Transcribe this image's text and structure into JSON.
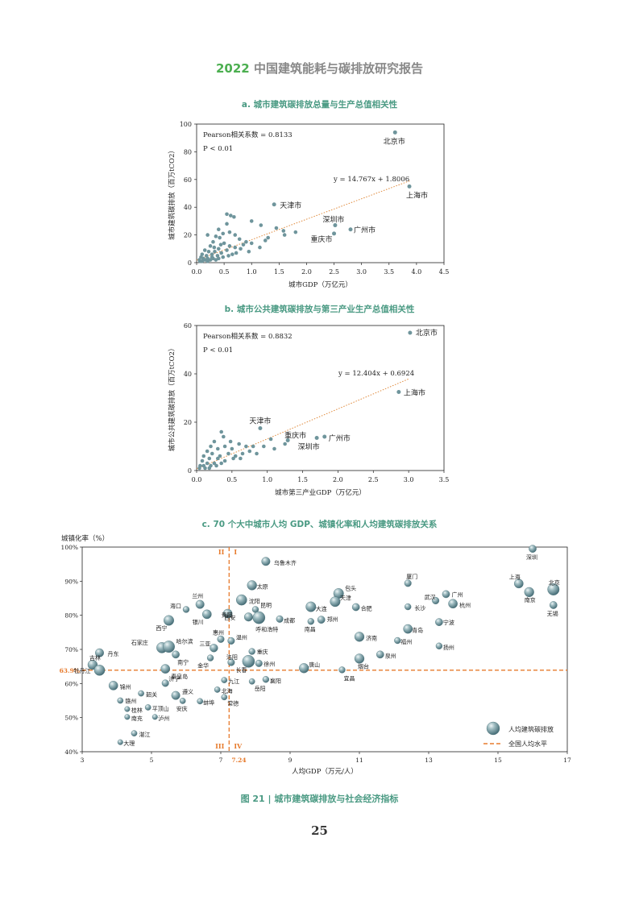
{
  "header": {
    "year": "2022",
    "title": "中国建筑能耗与碳排放研究报告"
  },
  "colors": {
    "point": "#6f959c",
    "trend": "#e08a3c",
    "ref_line": "#e77b2d",
    "bubble": "#6a9098"
  },
  "chart_data": [
    {
      "id": "a",
      "type": "scatter",
      "title": "a. 城市建筑碳排放总量与生产总值相关性",
      "xlabel": "城市GDP（万亿元）",
      "ylabel": "城市建筑碳排放（百万tCO2）",
      "xlim": [
        0,
        4.5
      ],
      "ylim": [
        0,
        100
      ],
      "xticks": [
        "0.0",
        "0.5",
        "1.0",
        "1.5",
        "2.0",
        "2.5",
        "3.0",
        "3.5",
        "4.0",
        "4.5"
      ],
      "yticks": [
        "0",
        "20",
        "40",
        "60",
        "80",
        "100"
      ],
      "stats": {
        "pearson": "Pearson相关系数 = 0.8133",
        "p": "P < 0.01"
      },
      "equation": "y = 14.767x + 1.8006",
      "trend": {
        "slope": 14.767,
        "intercept": 1.8006,
        "x_range": [
          0,
          3.88
        ]
      },
      "labeled_points": [
        {
          "name": "北京市",
          "x": 3.61,
          "y": 94
        },
        {
          "name": "上海市",
          "x": 3.87,
          "y": 55
        },
        {
          "name": "天津市",
          "x": 1.41,
          "y": 42
        },
        {
          "name": "深圳市",
          "x": 2.52,
          "y": 27
        },
        {
          "name": "重庆市",
          "x": 2.5,
          "y": 21
        },
        {
          "name": "广州市",
          "x": 2.8,
          "y": 24
        }
      ],
      "points": [
        [
          0.55,
          35
        ],
        [
          0.62,
          34
        ],
        [
          0.68,
          33
        ],
        [
          1.0,
          30
        ],
        [
          0.55,
          28
        ],
        [
          1.17,
          27
        ],
        [
          1.45,
          25
        ],
        [
          0.4,
          24
        ],
        [
          0.6,
          22
        ],
        [
          1.58,
          23
        ],
        [
          0.48,
          21
        ],
        [
          0.7,
          20
        ],
        [
          1.6,
          20
        ],
        [
          1.8,
          22
        ],
        [
          0.2,
          20
        ],
        [
          0.35,
          19
        ],
        [
          0.42,
          18
        ],
        [
          0.78,
          17
        ],
        [
          0.9,
          15
        ],
        [
          1.25,
          16
        ],
        [
          1.0,
          14
        ],
        [
          0.3,
          15
        ],
        [
          0.5,
          14
        ],
        [
          0.6,
          12
        ],
        [
          0.25,
          12
        ],
        [
          0.4,
          10
        ],
        [
          0.8,
          10
        ],
        [
          0.15,
          9
        ],
        [
          0.22,
          8
        ],
        [
          0.33,
          8
        ],
        [
          0.45,
          7
        ],
        [
          0.55,
          9
        ],
        [
          0.65,
          6
        ],
        [
          0.7,
          11
        ],
        [
          0.1,
          6
        ],
        [
          0.18,
          5
        ],
        [
          0.28,
          6
        ],
        [
          0.38,
          5
        ],
        [
          0.48,
          4
        ],
        [
          0.12,
          3
        ],
        [
          0.2,
          3
        ],
        [
          0.3,
          3
        ],
        [
          0.05,
          2
        ],
        [
          0.08,
          4
        ],
        [
          0.15,
          2
        ],
        [
          0.25,
          2
        ],
        [
          0.35,
          2
        ],
        [
          0.06,
          1
        ],
        [
          0.1,
          1
        ],
        [
          0.2,
          1
        ],
        [
          0.28,
          4
        ],
        [
          0.4,
          3
        ],
        [
          0.58,
          5
        ],
        [
          0.72,
          7
        ],
        [
          0.95,
          8
        ],
        [
          1.15,
          11
        ],
        [
          0.85,
          13
        ],
        [
          1.3,
          18
        ],
        [
          0.32,
          11
        ],
        [
          0.44,
          13
        ]
      ]
    },
    {
      "id": "b",
      "type": "scatter",
      "title": "b. 城市公共建筑碳排放与第三产业生产总值相关性",
      "xlabel": "城市第三产业GDP（万亿元）",
      "ylabel": "城市公共建筑碳排放（百万tCO2）",
      "xlim": [
        0,
        3.5
      ],
      "ylim": [
        0,
        60
      ],
      "xticks": [
        "0.0",
        "0.5",
        "1.0",
        "1.5",
        "2.0",
        "2.5",
        "3.0",
        "3.5"
      ],
      "yticks": [
        "0",
        "20",
        "40",
        "60"
      ],
      "stats": {
        "pearson": "Pearson相关系数 = 0.8832",
        "p": "P < 0.01"
      },
      "equation": "y = 12.404x + 0.6924",
      "trend": {
        "slope": 12.404,
        "intercept": 0.6924,
        "x_range": [
          0,
          3.0
        ]
      },
      "labeled_points": [
        {
          "name": "北京市",
          "x": 3.02,
          "y": 57
        },
        {
          "name": "上海市",
          "x": 2.86,
          "y": 32.5
        },
        {
          "name": "天津市",
          "x": 0.9,
          "y": 17.5
        },
        {
          "name": "广州市",
          "x": 1.81,
          "y": 14
        },
        {
          "name": "重庆市",
          "x": 1.29,
          "y": 12.5
        },
        {
          "name": "深圳市",
          "x": 1.7,
          "y": 13.5
        }
      ],
      "points": [
        [
          0.35,
          16
        ],
        [
          0.25,
          12
        ],
        [
          0.2,
          10
        ],
        [
          0.4,
          10
        ],
        [
          0.6,
          11
        ],
        [
          0.7,
          10
        ],
        [
          0.5,
          9
        ],
        [
          0.3,
          9
        ],
        [
          0.15,
          8
        ],
        [
          0.22,
          7
        ],
        [
          0.45,
          7
        ],
        [
          0.55,
          6
        ],
        [
          0.1,
          6
        ],
        [
          0.18,
          5
        ],
        [
          0.3,
          5
        ],
        [
          0.4,
          4
        ],
        [
          0.62,
          5
        ],
        [
          0.08,
          4
        ],
        [
          0.15,
          3
        ],
        [
          0.25,
          3
        ],
        [
          0.35,
          3
        ],
        [
          0.05,
          2
        ],
        [
          0.1,
          2
        ],
        [
          0.2,
          2
        ],
        [
          0.28,
          2
        ],
        [
          0.04,
          1
        ],
        [
          0.12,
          1
        ],
        [
          0.18,
          1
        ],
        [
          0.8,
          10
        ],
        [
          0.95,
          10
        ],
        [
          1.1,
          9
        ],
        [
          1.25,
          11
        ],
        [
          0.75,
          8
        ],
        [
          0.85,
          7
        ],
        [
          0.65,
          7
        ],
        [
          0.48,
          12
        ],
        [
          0.38,
          14
        ],
        [
          1.05,
          13
        ],
        [
          0.52,
          5
        ],
        [
          0.33,
          6
        ]
      ]
    },
    {
      "id": "c",
      "type": "scatter",
      "title": "c. 70 个大中城市人均 GDP、城镇化率和人均建筑碳排放关系",
      "xlabel": "人均GDP（万元/人）",
      "ylabel": "城镇化率（%）",
      "xlim": [
        3,
        17
      ],
      "ylim": [
        40,
        100
      ],
      "xticks": [
        "3",
        "5",
        "7",
        "9",
        "11",
        "13",
        "15",
        "17"
      ],
      "yticks": [
        "40%",
        "50%",
        "60%",
        "70%",
        "80%",
        "90%",
        "100%"
      ],
      "ref_x": 7.24,
      "ref_x_label": "7.24",
      "ref_y": 63.9,
      "ref_y_label": "63.9%",
      "quadrants": [
        "II",
        "I",
        "III",
        "IV"
      ],
      "legend": {
        "bubble": "人均建筑碳排放",
        "line": "全国人均水平"
      },
      "cities": [
        {
          "name": "深圳",
          "x": 16.0,
          "y": 99.5,
          "s": 1.4
        },
        {
          "name": "乌鲁木齐",
          "x": 8.3,
          "y": 95.8,
          "s": 1.6
        },
        {
          "name": "上海",
          "x": 15.6,
          "y": 89.3,
          "s": 1.7
        },
        {
          "name": "北京",
          "x": 16.6,
          "y": 87.6,
          "s": 2.2
        },
        {
          "name": "南京",
          "x": 15.9,
          "y": 86.8,
          "s": 1.8
        },
        {
          "name": "无锡",
          "x": 16.6,
          "y": 83.0,
          "s": 1.4
        },
        {
          "name": "太原",
          "x": 7.9,
          "y": 88.8,
          "s": 1.8
        },
        {
          "name": "厦门",
          "x": 12.4,
          "y": 89.4,
          "s": 1.3
        },
        {
          "name": "包头",
          "x": 10.4,
          "y": 86.4,
          "s": 1.9
        },
        {
          "name": "武汉",
          "x": 13.2,
          "y": 84.3,
          "s": 1.3
        },
        {
          "name": "广州",
          "x": 13.5,
          "y": 86.2,
          "s": 1.4
        },
        {
          "name": "杭州",
          "x": 13.7,
          "y": 83.4,
          "s": 1.7
        },
        {
          "name": "长沙",
          "x": 12.4,
          "y": 82.5,
          "s": 1.2
        },
        {
          "name": "沈阳",
          "x": 7.6,
          "y": 84.5,
          "s": 2.0
        },
        {
          "name": "大连",
          "x": 9.6,
          "y": 82.5,
          "s": 1.9
        },
        {
          "name": "天津",
          "x": 10.3,
          "y": 84.0,
          "s": 1.9
        },
        {
          "name": "合肥",
          "x": 10.9,
          "y": 82.4,
          "s": 1.4
        },
        {
          "name": "兰州",
          "x": 6.4,
          "y": 83.2,
          "s": 1.6
        },
        {
          "name": "海口",
          "x": 6.0,
          "y": 81.7,
          "s": 1.2
        },
        {
          "name": "银川",
          "x": 6.6,
          "y": 80.3,
          "s": 1.7
        },
        {
          "name": "昆明",
          "x": 8.0,
          "y": 81.7,
          "s": 1.2
        },
        {
          "name": "贵阳",
          "x": 7.2,
          "y": 80.5,
          "s": 1.7
        },
        {
          "name": "呼和浩特",
          "x": 8.1,
          "y": 79.3,
          "s": 2.3
        },
        {
          "name": "西安",
          "x": 7.8,
          "y": 79.5,
          "s": 1.6
        },
        {
          "name": "成都",
          "x": 8.7,
          "y": 78.9,
          "s": 1.3
        },
        {
          "name": "郑州",
          "x": 9.9,
          "y": 78.7,
          "s": 1.4
        },
        {
          "name": "南昌",
          "x": 9.6,
          "y": 78.2,
          "s": 1.2
        },
        {
          "name": "西宁",
          "x": 5.5,
          "y": 78.5,
          "s": 1.9
        },
        {
          "name": "宁波",
          "x": 13.3,
          "y": 78.0,
          "s": 1.4
        },
        {
          "name": "青岛",
          "x": 12.4,
          "y": 76.0,
          "s": 1.7
        },
        {
          "name": "济南",
          "x": 11.0,
          "y": 73.7,
          "s": 1.8
        },
        {
          "name": "福州",
          "x": 12.1,
          "y": 72.6,
          "s": 1.2
        },
        {
          "name": "扬州",
          "x": 13.3,
          "y": 71.0,
          "s": 1.2
        },
        {
          "name": "惠州",
          "x": 7.0,
          "y": 73.0,
          "s": 1.3
        },
        {
          "name": "温州",
          "x": 7.3,
          "y": 72.5,
          "s": 1.3
        },
        {
          "name": "石家庄",
          "x": 5.3,
          "y": 70.5,
          "s": 2.0
        },
        {
          "name": "哈尔滨",
          "x": 5.5,
          "y": 70.8,
          "s": 2.2
        },
        {
          "name": "三亚",
          "x": 6.8,
          "y": 70.4,
          "s": 1.5
        },
        {
          "name": "重庆",
          "x": 7.9,
          "y": 69.4,
          "s": 1.2
        },
        {
          "name": "南宁",
          "x": 5.7,
          "y": 68.5,
          "s": 1.4
        },
        {
          "name": "泉州",
          "x": 11.6,
          "y": 68.5,
          "s": 1.4
        },
        {
          "name": "金华",
          "x": 6.7,
          "y": 67.5,
          "s": 1.2
        },
        {
          "name": "烟台",
          "x": 11.0,
          "y": 67.3,
          "s": 1.8
        },
        {
          "name": "丹东",
          "x": 3.5,
          "y": 69.0,
          "s": 1.6
        },
        {
          "name": "洛阳",
          "x": 7.3,
          "y": 66.2,
          "s": 1.3
        },
        {
          "name": "长春",
          "x": 7.8,
          "y": 66.5,
          "s": 2.3
        },
        {
          "name": "徐州",
          "x": 8.1,
          "y": 65.9,
          "s": 1.3
        },
        {
          "name": "唐山",
          "x": 9.4,
          "y": 64.5,
          "s": 1.8
        },
        {
          "name": "吉林",
          "x": 3.3,
          "y": 65.5,
          "s": 1.8
        },
        {
          "name": "宜昌",
          "x": 10.5,
          "y": 64.0,
          "s": 1.2
        },
        {
          "name": "秦皇岛",
          "x": 5.4,
          "y": 64.3,
          "s": 1.7
        },
        {
          "name": "牡丹江",
          "x": 3.5,
          "y": 63.9,
          "s": 2.0
        },
        {
          "name": "九江",
          "x": 7.1,
          "y": 61.0,
          "s": 1.1
        },
        {
          "name": "襄阳",
          "x": 8.3,
          "y": 61.2,
          "s": 1.2
        },
        {
          "name": "岳阳",
          "x": 7.9,
          "y": 60.6,
          "s": 1.1
        },
        {
          "name": "济宁",
          "x": 5.4,
          "y": 60.1,
          "s": 1.3
        },
        {
          "name": "锦州",
          "x": 3.9,
          "y": 59.4,
          "s": 1.7
        },
        {
          "name": "韶关",
          "x": 4.7,
          "y": 57.1,
          "s": 1.1
        },
        {
          "name": "遵义",
          "x": 5.7,
          "y": 56.5,
          "s": 1.6
        },
        {
          "name": "北海",
          "x": 6.9,
          "y": 58.2,
          "s": 1.1
        },
        {
          "name": "常德",
          "x": 7.1,
          "y": 56.0,
          "s": 1.1
        },
        {
          "name": "蚌埠",
          "x": 6.4,
          "y": 54.8,
          "s": 1.1
        },
        {
          "name": "赣州",
          "x": 4.1,
          "y": 55.0,
          "s": 1.1
        },
        {
          "name": "平顶山",
          "x": 4.9,
          "y": 53.0,
          "s": 1.1
        },
        {
          "name": "安庆",
          "x": 5.9,
          "y": 54.9,
          "s": 1.1
        },
        {
          "name": "桂林",
          "x": 4.3,
          "y": 52.5,
          "s": 1.0
        },
        {
          "name": "泸州",
          "x": 5.1,
          "y": 50.2,
          "s": 1.0
        },
        {
          "name": "南充",
          "x": 4.3,
          "y": 50.2,
          "s": 1.0
        },
        {
          "name": "湛江",
          "x": 4.5,
          "y": 45.4,
          "s": 1.1
        },
        {
          "name": "大理",
          "x": 4.1,
          "y": 42.8,
          "s": 1.0
        }
      ]
    }
  ],
  "figure_caption": "图 21 |  城市建筑碳排放与社会经济指标",
  "page_number": "25"
}
